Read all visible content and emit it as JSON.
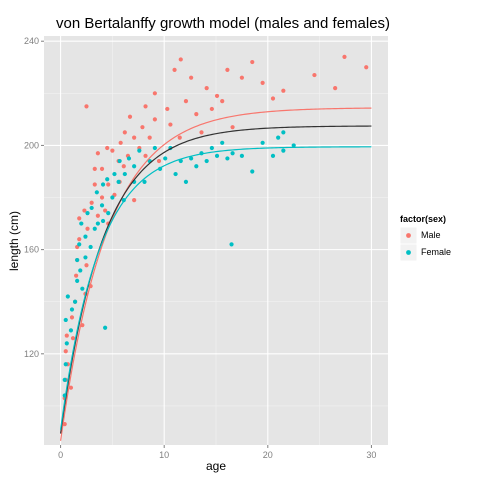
{
  "chart_data": {
    "type": "scatter",
    "title": "von Bertalanffy growth model (males and females)",
    "xlabel": "age",
    "ylabel": "length (cm)",
    "xlim": [
      -1.6,
      31.6
    ],
    "ylim": [
      85,
      242
    ],
    "x_ticks": [
      0,
      10,
      20,
      30
    ],
    "y_ticks": [
      120,
      160,
      200,
      240
    ],
    "grid": true,
    "legend": {
      "title": "factor(sex)",
      "position": "right",
      "entries": [
        "Male",
        "Female"
      ]
    },
    "colors": {
      "Male": "#F8766D",
      "Female": "#00BFC4",
      "combined_fit": "#333333",
      "panel_background": "#E5E5E5",
      "grid": "#FFFFFF"
    },
    "series": [
      {
        "name": "Male",
        "points": [
          [
            0.4,
            93
          ],
          [
            0.4,
            103
          ],
          [
            0.5,
            110
          ],
          [
            0.5,
            121
          ],
          [
            0.6,
            127
          ],
          [
            0.7,
            116
          ],
          [
            1.0,
            107
          ],
          [
            1.1,
            134
          ],
          [
            1.2,
            126
          ],
          [
            1.4,
            140
          ],
          [
            1.5,
            150
          ],
          [
            1.6,
            156
          ],
          [
            1.6,
            161
          ],
          [
            1.8,
            164
          ],
          [
            1.8,
            172
          ],
          [
            2.1,
            131
          ],
          [
            2.3,
            175
          ],
          [
            2.4,
            143
          ],
          [
            2.5,
            154
          ],
          [
            2.6,
            168
          ],
          [
            2.9,
            146
          ],
          [
            2.5,
            215
          ],
          [
            3.0,
            178
          ],
          [
            3.3,
            185
          ],
          [
            3.3,
            191
          ],
          [
            3.6,
            173
          ],
          [
            3.6,
            197
          ],
          [
            4.0,
            180
          ],
          [
            4.0,
            191
          ],
          [
            4.3,
            175
          ],
          [
            4.5,
            199
          ],
          [
            4.6,
            185
          ],
          [
            4.6,
            170
          ],
          [
            5.0,
            198
          ],
          [
            5.2,
            181
          ],
          [
            5.6,
            194
          ],
          [
            5.7,
            186
          ],
          [
            5.8,
            201
          ],
          [
            6.1,
            192
          ],
          [
            6.2,
            205
          ],
          [
            6.5,
            196
          ],
          [
            6.7,
            211
          ],
          [
            7.1,
            203
          ],
          [
            7.1,
            179
          ],
          [
            7.6,
            199
          ],
          [
            7.9,
            207
          ],
          [
            8.2,
            215
          ],
          [
            8.2,
            196
          ],
          [
            8.6,
            203
          ],
          [
            9.1,
            210
          ],
          [
            9.5,
            194
          ],
          [
            9.1,
            220
          ],
          [
            10.3,
            214
          ],
          [
            10.6,
            208
          ],
          [
            11.0,
            229
          ],
          [
            11.5,
            203
          ],
          [
            11.6,
            233
          ],
          [
            12.1,
            217
          ],
          [
            12.6,
            226
          ],
          [
            13.1,
            212
          ],
          [
            13.6,
            205
          ],
          [
            14.1,
            222
          ],
          [
            14.6,
            214
          ],
          [
            15.1,
            219
          ],
          [
            15.6,
            217
          ],
          [
            16.1,
            229
          ],
          [
            16.6,
            207
          ],
          [
            17.5,
            226
          ],
          [
            18.5,
            232
          ],
          [
            19.5,
            224
          ],
          [
            20.5,
            218
          ],
          [
            21.5,
            221
          ],
          [
            24.5,
            227
          ],
          [
            26.5,
            222
          ],
          [
            27.4,
            234
          ],
          [
            29.5,
            230
          ]
        ]
      },
      {
        "name": "Female",
        "points": [
          [
            0.4,
            104
          ],
          [
            0.4,
            110
          ],
          [
            0.5,
            116
          ],
          [
            0.6,
            124
          ],
          [
            0.5,
            133
          ],
          [
            0.7,
            142
          ],
          [
            1.0,
            129
          ],
          [
            1.1,
            137
          ],
          [
            1.4,
            140
          ],
          [
            1.6,
            148
          ],
          [
            1.6,
            156
          ],
          [
            1.8,
            162
          ],
          [
            1.9,
            152
          ],
          [
            2.0,
            170
          ],
          [
            2.1,
            145
          ],
          [
            2.4,
            157
          ],
          [
            2.4,
            165
          ],
          [
            2.6,
            174
          ],
          [
            2.9,
            161
          ],
          [
            3.0,
            176
          ],
          [
            3.3,
            168
          ],
          [
            3.5,
            182
          ],
          [
            3.6,
            170
          ],
          [
            4.0,
            177
          ],
          [
            4.1,
            185
          ],
          [
            4.1,
            171
          ],
          [
            4.3,
            130
          ],
          [
            4.5,
            187
          ],
          [
            4.6,
            174
          ],
          [
            5.0,
            180
          ],
          [
            5.2,
            189
          ],
          [
            5.6,
            186
          ],
          [
            5.7,
            194
          ],
          [
            6.1,
            179
          ],
          [
            6.2,
            189
          ],
          [
            6.6,
            195
          ],
          [
            7.1,
            186
          ],
          [
            7.1,
            192
          ],
          [
            7.6,
            198
          ],
          [
            8.1,
            186
          ],
          [
            8.6,
            194
          ],
          [
            9.1,
            199
          ],
          [
            9.6,
            191
          ],
          [
            10.1,
            195
          ],
          [
            10.6,
            199
          ],
          [
            11.1,
            189
          ],
          [
            11.6,
            194
          ],
          [
            12.1,
            186
          ],
          [
            12.6,
            195
          ],
          [
            13.1,
            192
          ],
          [
            13.6,
            197
          ],
          [
            14.1,
            194
          ],
          [
            14.6,
            199
          ],
          [
            15.1,
            196
          ],
          [
            15.6,
            201
          ],
          [
            16.1,
            195
          ],
          [
            16.5,
            162
          ],
          [
            16.6,
            197
          ],
          [
            17.5,
            196
          ],
          [
            18.5,
            190
          ],
          [
            19.5,
            201
          ],
          [
            20.5,
            196
          ],
          [
            21.5,
            198
          ],
          [
            22.5,
            200
          ],
          [
            21.0,
            203
          ],
          [
            21.5,
            205
          ]
        ]
      }
    ],
    "fit_lines": [
      {
        "series": "Male",
        "Linf": 214.5,
        "K": 0.22,
        "t0": -2.35
      },
      {
        "series": "Combined",
        "Linf": 207.5,
        "K": 0.245,
        "t0": -2.3
      },
      {
        "series": "Female",
        "Linf": 199.5,
        "K": 0.27,
        "t0": -2.25
      }
    ]
  }
}
